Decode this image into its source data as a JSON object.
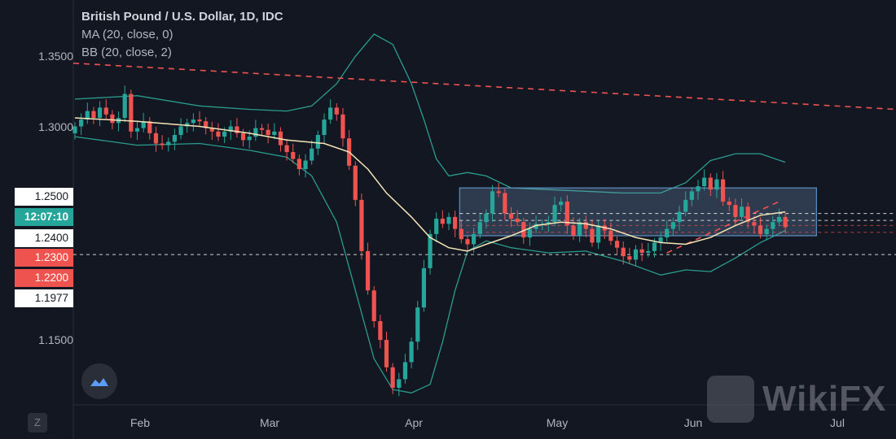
{
  "legend": {
    "title": "British Pound / U.S. Dollar, 1D, IDC",
    "ma": "MA (20, close, 0)",
    "bb": "BB (20, close, 2)"
  },
  "price_axis": {
    "ticks": [
      "1.3500",
      "1.3000",
      "1.2500",
      "1.2400",
      "1.1500"
    ],
    "tags": [
      {
        "label": "1.2500",
        "bg": "#ffffff",
        "fg": "#131722"
      },
      {
        "label": "12:07:10",
        "bg": "#26a69a",
        "fg": "#ffffff"
      },
      {
        "label": "1.2400",
        "bg": "#ffffff",
        "fg": "#131722"
      },
      {
        "label": "1.2300",
        "bg": "#ef5350",
        "fg": "#ffffff"
      },
      {
        "label": "1.2200",
        "bg": "#ef5350",
        "fg": "#ffffff"
      },
      {
        "label": "1.1977",
        "bg": "#ffffff",
        "fg": "#131722"
      }
    ]
  },
  "time_axis": [
    "Feb",
    "Mar",
    "Apr",
    "May",
    "Jun",
    "Jul"
  ],
  "watermark": "WikiFX",
  "bottom_button": "Z",
  "colors": {
    "background": "#131722",
    "up": "#26a69a",
    "down": "#ef5350",
    "ma": "#f5e6b8",
    "bands": "#2a9d8f",
    "range_box": "#5f8fbf",
    "trend": "#ef5350"
  },
  "chart_data": {
    "type": "candlestick",
    "symbol": "British Pound / U.S. Dollar",
    "interval": "1D",
    "source": "IDC",
    "ylim": [
      1.138,
      1.375
    ],
    "x_months": [
      "Feb",
      "Mar",
      "Apr",
      "May",
      "Jun",
      "Jul"
    ],
    "closes": [
      1.301,
      1.305,
      1.31,
      1.306,
      1.312,
      1.308,
      1.303,
      1.306,
      1.32,
      1.298,
      1.3,
      1.304,
      1.297,
      1.291,
      1.29,
      1.292,
      1.296,
      1.301,
      1.303,
      1.305,
      1.304,
      1.3,
      1.298,
      1.295,
      1.298,
      1.301,
      1.297,
      1.293,
      1.295,
      1.3,
      1.299,
      1.296,
      1.298,
      1.29,
      1.286,
      1.282,
      1.276,
      1.281,
      1.288,
      1.296,
      1.305,
      1.312,
      1.308,
      1.294,
      1.278,
      1.258,
      1.228,
      1.205,
      1.187,
      1.176,
      1.16,
      1.148,
      1.153,
      1.163,
      1.175,
      1.195,
      1.218,
      1.238,
      1.247,
      1.244,
      1.248,
      1.241,
      1.235,
      1.232,
      1.238,
      1.245,
      1.25,
      1.263,
      1.262,
      1.25,
      1.247,
      1.245,
      1.236,
      1.241,
      1.244,
      1.244,
      1.245,
      1.255,
      1.257,
      1.243,
      1.237,
      1.245,
      1.241,
      1.233,
      1.243,
      1.24,
      1.234,
      1.23,
      1.225,
      1.223,
      1.229,
      1.227,
      1.228,
      1.233,
      1.236,
      1.241,
      1.245,
      1.251,
      1.258,
      1.263,
      1.266,
      1.271,
      1.264,
      1.27,
      1.257,
      1.255,
      1.248,
      1.254,
      1.245,
      1.243,
      1.238,
      1.241,
      1.245,
      1.248,
      1.242
    ],
    "ma20": [
      [
        0,
        1.306
      ],
      [
        10,
        1.304
      ],
      [
        20,
        1.301
      ],
      [
        28,
        1.297
      ],
      [
        34,
        1.293
      ],
      [
        40,
        1.291
      ],
      [
        44,
        1.286
      ],
      [
        47,
        1.276
      ],
      [
        50,
        1.262
      ],
      [
        54,
        1.248
      ],
      [
        57,
        1.236
      ],
      [
        60,
        1.23
      ],
      [
        63,
        1.228
      ],
      [
        66,
        1.232
      ],
      [
        70,
        1.237
      ],
      [
        74,
        1.243
      ],
      [
        78,
        1.245
      ],
      [
        82,
        1.244
      ],
      [
        86,
        1.241
      ],
      [
        90,
        1.236
      ],
      [
        94,
        1.233
      ],
      [
        98,
        1.232
      ],
      [
        102,
        1.236
      ],
      [
        106,
        1.243
      ],
      [
        110,
        1.249
      ],
      [
        114,
        1.251
      ]
    ],
    "bb_upper": [
      [
        0,
        1.317
      ],
      [
        10,
        1.319
      ],
      [
        20,
        1.313
      ],
      [
        28,
        1.311
      ],
      [
        34,
        1.31
      ],
      [
        38,
        1.313
      ],
      [
        42,
        1.326
      ],
      [
        45,
        1.342
      ],
      [
        48,
        1.355
      ],
      [
        51,
        1.349
      ],
      [
        54,
        1.326
      ],
      [
        56,
        1.305
      ],
      [
        58,
        1.282
      ],
      [
        60,
        1.272
      ],
      [
        63,
        1.274
      ],
      [
        66,
        1.272
      ],
      [
        70,
        1.265
      ],
      [
        76,
        1.264
      ],
      [
        82,
        1.263
      ],
      [
        88,
        1.262
      ],
      [
        94,
        1.262
      ],
      [
        98,
        1.268
      ],
      [
        102,
        1.281
      ],
      [
        106,
        1.285
      ],
      [
        110,
        1.285
      ],
      [
        114,
        1.28
      ]
    ],
    "bb_lower": [
      [
        0,
        1.295
      ],
      [
        10,
        1.29
      ],
      [
        20,
        1.291
      ],
      [
        28,
        1.287
      ],
      [
        34,
        1.283
      ],
      [
        38,
        1.272
      ],
      [
        42,
        1.245
      ],
      [
        45,
        1.205
      ],
      [
        48,
        1.165
      ],
      [
        51,
        1.147
      ],
      [
        54,
        1.145
      ],
      [
        57,
        1.15
      ],
      [
        59,
        1.175
      ],
      [
        61,
        1.205
      ],
      [
        63,
        1.228
      ],
      [
        66,
        1.234
      ],
      [
        70,
        1.23
      ],
      [
        76,
        1.227
      ],
      [
        82,
        1.228
      ],
      [
        88,
        1.222
      ],
      [
        94,
        1.214
      ],
      [
        98,
        1.217
      ],
      [
        102,
        1.216
      ],
      [
        106,
        1.224
      ],
      [
        110,
        1.233
      ],
      [
        114,
        1.24
      ]
    ],
    "range_box": {
      "top": 1.265,
      "bottom": 1.237,
      "start_index": 62,
      "end_index": 119
    },
    "trendline_upper": {
      "points": [
        [
          -33,
          1.344
        ],
        [
          147,
          1.311
        ]
      ]
    },
    "trendline_lower": {
      "points": [
        [
          95,
          1.227
        ],
        [
          113,
          1.257
        ]
      ]
    },
    "levels": [
      {
        "price": 1.25,
        "style": "dashed",
        "color": "#ffffff"
      },
      {
        "price": 1.246,
        "style": "dashed",
        "color": "#ffffff"
      },
      {
        "price": 1.243,
        "style": "dashed",
        "color": "#ef5350"
      },
      {
        "price": 1.239,
        "style": "dashed",
        "color": "#ef5350"
      },
      {
        "price": 1.226,
        "style": "dashed",
        "color": "#ffffff"
      }
    ]
  }
}
